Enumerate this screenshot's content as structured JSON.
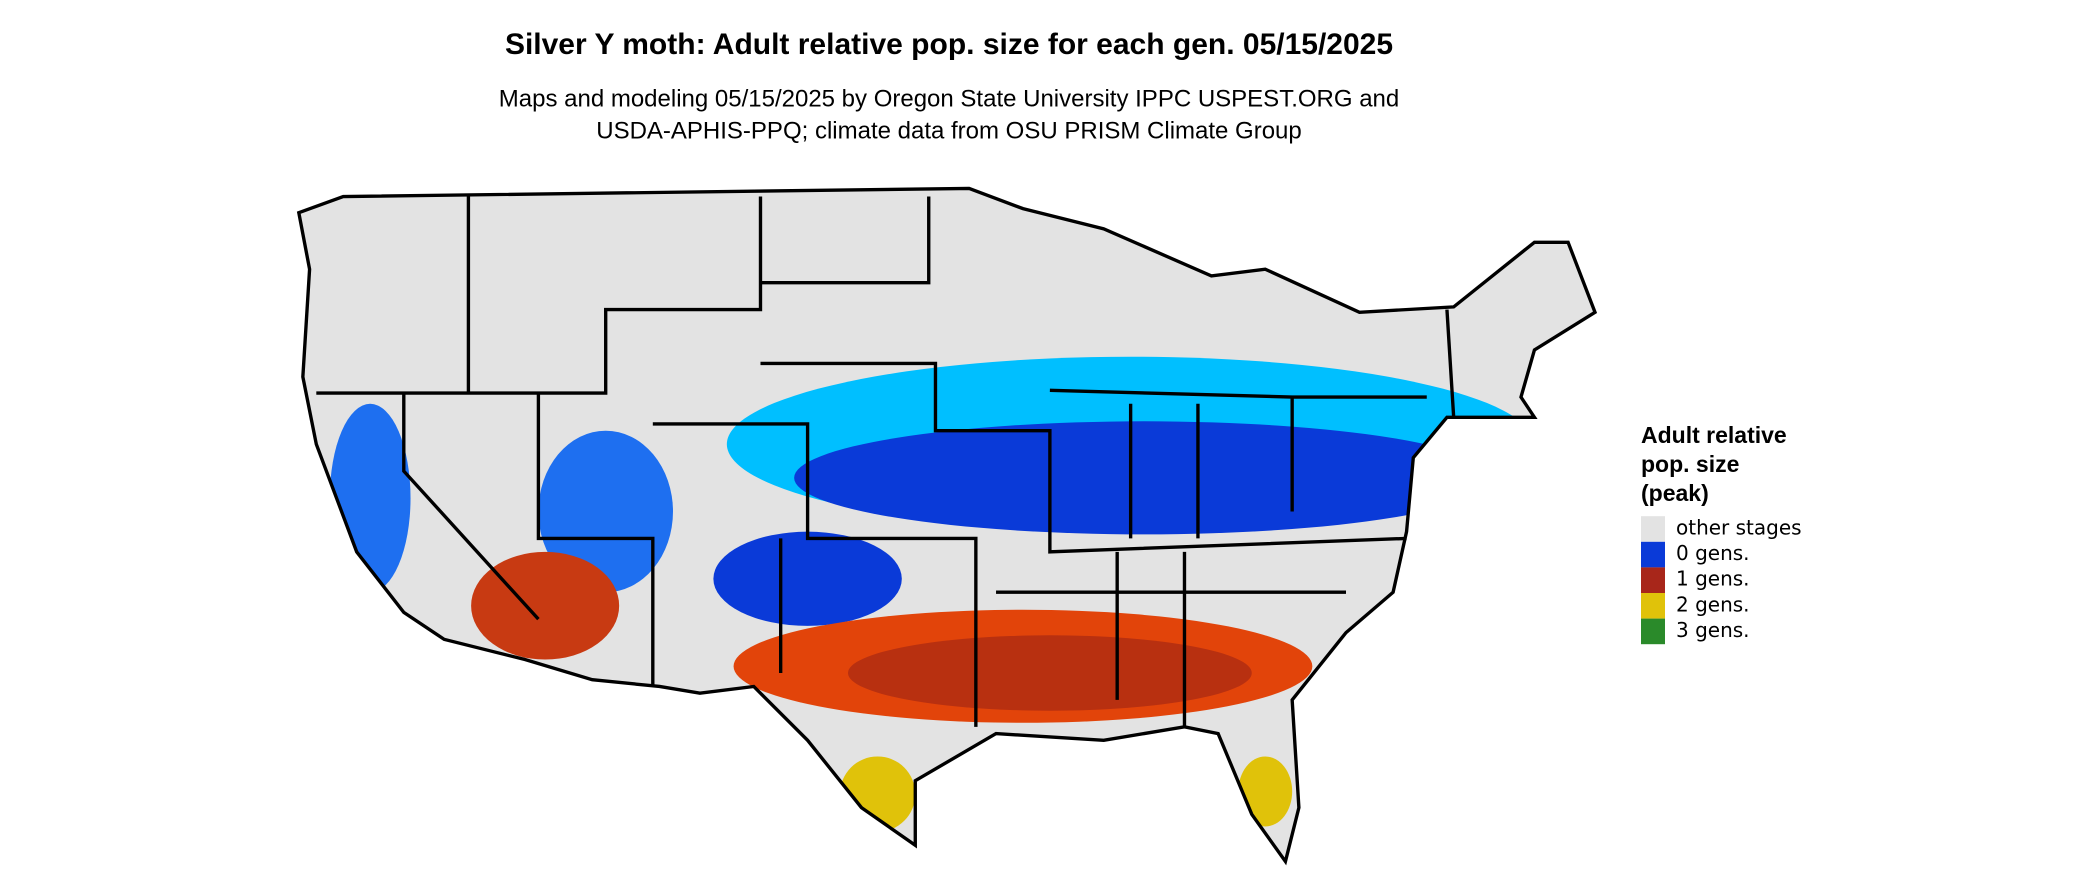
{
  "title": "Silver Y moth: Adult relative pop. size for each gen. 05/15/2025",
  "subtitle": [
    "Maps and modeling 05/15/2025 by Oregon State University IPPC USPEST.ORG and",
    "USDA-APHIS-PPQ; climate data from OSU PRISM Climate Group"
  ],
  "legend": {
    "title": [
      "Adult relative",
      "pop. size",
      "(peak)"
    ],
    "items": [
      {
        "label": "other stages",
        "color": "#e3e3e3"
      },
      {
        "label": "0 gens.",
        "color": "#0a3ad8"
      },
      {
        "label": "1 gens.",
        "color": "#a8261a"
      },
      {
        "label": "2 gens.",
        "color": "#e0c20a"
      },
      {
        "label": "3 gens.",
        "color": "#2a8a2a"
      }
    ]
  }
}
